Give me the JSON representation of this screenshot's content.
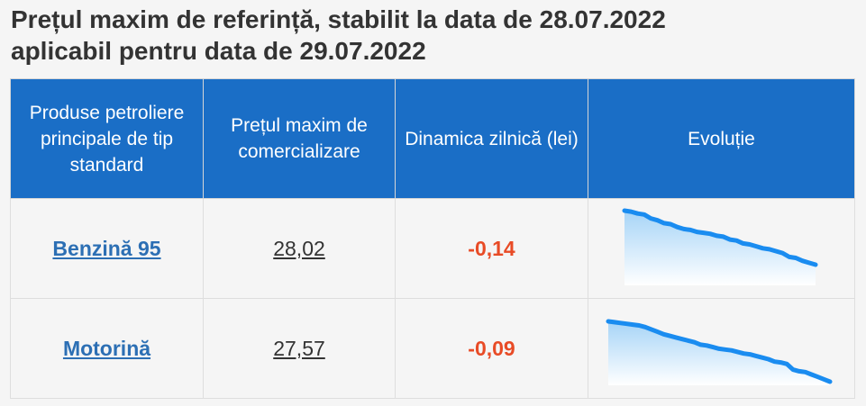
{
  "title": {
    "line1": "Prețul maxim de referință, stabilit la data de 28.07.2022",
    "line2": "aplicabil pentru data de 29.07.2022"
  },
  "table": {
    "headers": [
      "Produse petroliere principale de tip standard",
      "Prețul maxim de comercializare",
      "Dinamica zilnică (lei)",
      "Evoluție"
    ],
    "rows": [
      {
        "product": "Benzină 95",
        "price": "28,02",
        "change": "-0,14"
      },
      {
        "product": "Motorină",
        "price": "27,57",
        "change": "-0,09"
      }
    ]
  },
  "colors": {
    "header_bg": "#1a6ec6",
    "link": "#2c6fb4",
    "negative_change": "#e84b26",
    "sparkline_line": "#1a8cf0",
    "sparkline_fill": "#a6d4f7"
  },
  "chart_data": [
    {
      "type": "area",
      "series": [
        {
          "values": [
            28.58,
            28.57,
            28.55,
            28.54,
            28.5,
            28.48,
            28.45,
            28.44,
            28.41,
            28.39,
            28.38,
            28.36,
            28.35,
            28.34,
            28.32,
            28.31,
            28.28,
            28.27,
            28.24,
            28.23,
            28.21,
            28.19,
            28.18,
            28.16,
            28.14,
            28.1,
            28.09,
            28.06,
            28.04,
            28.02
          ]
        }
      ]
    },
    {
      "type": "area",
      "series": [
        {
          "values": [
            28.32,
            28.31,
            28.3,
            28.29,
            28.28,
            28.27,
            28.25,
            28.22,
            28.19,
            28.16,
            28.14,
            28.12,
            28.1,
            28.08,
            28.06,
            28.03,
            28.02,
            28.0,
            27.98,
            27.97,
            27.96,
            27.94,
            27.92,
            27.91,
            27.89,
            27.87,
            27.85,
            27.82,
            27.81,
            27.79,
            27.72,
            27.7,
            27.69,
            27.66,
            27.63,
            27.6,
            27.57
          ]
        }
      ]
    }
  ]
}
